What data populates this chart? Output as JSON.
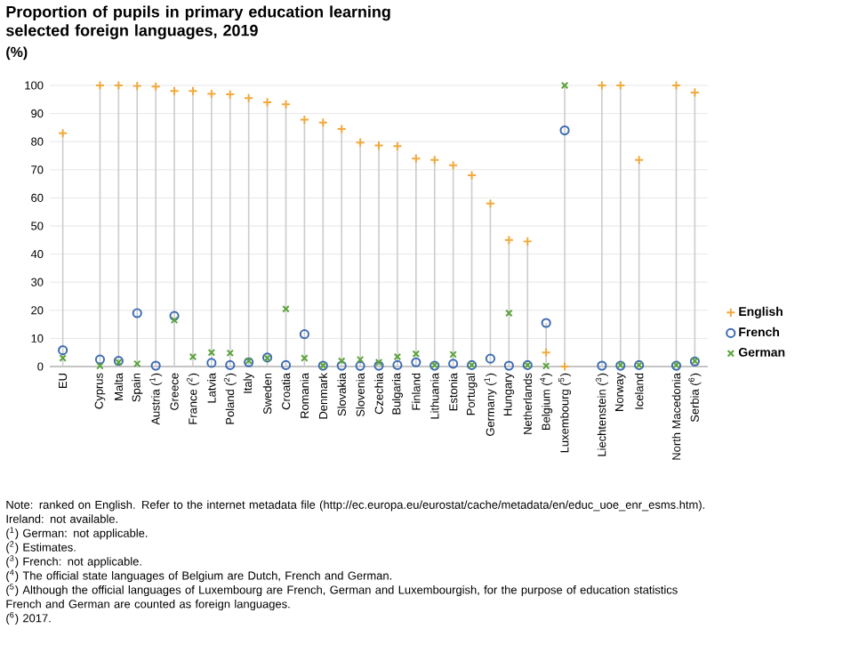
{
  "chart_data": {
    "type": "scatter",
    "title": "Proportion of pupils in primary education learning selected foreign languages, 2019",
    "ylabel": "(%)",
    "categories": [
      "EU",
      null,
      "Cyprus",
      "Malta",
      "Spain",
      "Austria ($^{1}$)",
      "Greece",
      "France ($^{2}$)",
      "Latvia",
      "Poland ($^{2}$)",
      "Italy",
      "Sweden",
      "Croatia",
      "Romania",
      "Denmark",
      "Slovakia",
      "Slovenia",
      "Czechia",
      "Bulgaria",
      "Finland",
      "Lithuania",
      "Estonia",
      "Portugal",
      "Germany ($^{1}$)",
      "Hungary",
      "Netherlands",
      "Belgium ($^{4}$)",
      "Luxembourg ($^{5}$)",
      null,
      "Liechtenstein ($^{3}$)",
      "Norway",
      "Iceland",
      null,
      "North Macedonia",
      "Serbia ($^{6}$)"
    ],
    "series": [
      {
        "name": "English",
        "color": "#f2a93b",
        "marker": "cross",
        "values": [
          83,
          null,
          100,
          100,
          99.8,
          99.6,
          98,
          98,
          97,
          96.8,
          95.5,
          94,
          93.3,
          87.8,
          86.8,
          84.5,
          79.7,
          78.6,
          78.4,
          74,
          73.5,
          71.6,
          68,
          58,
          45,
          44.5,
          5,
          0,
          null,
          100,
          100,
          73.5,
          null,
          100,
          97.5
        ]
      },
      {
        "name": "French",
        "color": "#3d6bb3",
        "marker": "circle",
        "values": [
          5.8,
          null,
          2.5,
          2,
          19,
          0.3,
          18,
          null,
          1.3,
          0.5,
          1.5,
          3.2,
          0.5,
          11.5,
          0.3,
          0.3,
          0.2,
          0.3,
          0.5,
          1.5,
          0.3,
          1,
          0.5,
          2.8,
          0.3,
          0.5,
          15.5,
          84,
          null,
          0.3,
          0.3,
          0.5,
          null,
          0.3,
          1.8
        ]
      },
      {
        "name": "German",
        "color": "#5ba33b",
        "marker": "cross",
        "values": [
          3,
          null,
          0.2,
          1.5,
          1,
          null,
          16.5,
          3.5,
          5,
          4.8,
          2,
          3,
          20.5,
          3,
          0.3,
          2,
          2.5,
          1.5,
          3.5,
          4.5,
          0.5,
          4.3,
          0.5,
          null,
          19,
          0.5,
          0.2,
          100,
          null,
          null,
          0.5,
          0.5,
          null,
          0.5,
          2
        ]
      }
    ],
    "ylim": [
      0,
      100
    ],
    "yticks": [
      0,
      10,
      20,
      30,
      40,
      50,
      60,
      70,
      80,
      90,
      100
    ],
    "grid": true,
    "legend": "right",
    "annotations": [
      "Note: ranked on English. Refer to the internet metadata file (http://ec.europa.eu/eurostat/cache/metadata/en/educ_uoe_enr_esms.htm). Ireland: not available.",
      "($^{1}$) German: not applicable.",
      "($^{2}$) Estimates.",
      "($^{3}$) French: not applicable.",
      "($^{4}$) The official state languages of Belgium are Dutch, French and German.",
      "($^{5}$) Although the official languages of Luxembourg are French, German and Luxembourgish, for the purpose of education statistics French and German are counted as foreign languages.",
      "($^{6}$) 2017."
    ]
  }
}
